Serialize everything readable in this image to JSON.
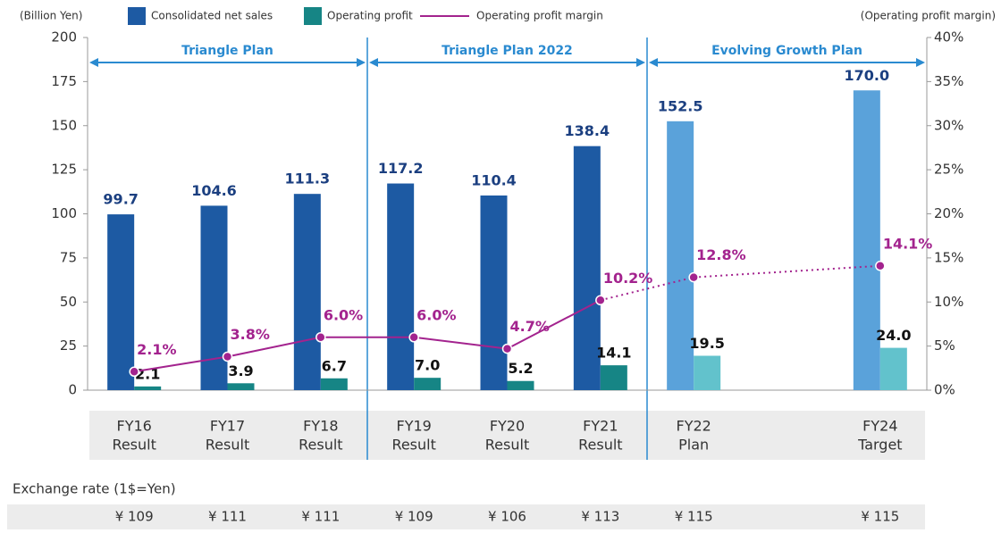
{
  "chart_data": {
    "type": "bar-line",
    "y_axis_label": "(Billion Yen)",
    "y2_axis_label": "(Operating profit margin)",
    "categories": [
      [
        "FY16",
        "Result"
      ],
      [
        "FY17",
        "Result"
      ],
      [
        "FY18",
        "Result"
      ],
      [
        "FY19",
        "Result"
      ],
      [
        "FY20",
        "Result"
      ],
      [
        "FY21",
        "Result"
      ],
      [
        "FY22",
        "Plan"
      ],
      null,
      [
        "FY24",
        "Target"
      ]
    ],
    "plan_labels": [
      "Triangle Plan",
      "Triangle Plan 2022",
      "Evolving Growth Plan"
    ],
    "series": [
      {
        "name": "Consolidated net sales",
        "type": "bar",
        "color": "#1d5aa3",
        "colors": [
          "#1d5aa3",
          "#1d5aa3",
          "#1d5aa3",
          "#1d5aa3",
          "#1d5aa3",
          "#1d5aa3",
          "#5aa2da",
          null,
          "#5aa2da"
        ],
        "values": [
          99.7,
          104.6,
          111.3,
          117.2,
          110.4,
          138.4,
          152.5,
          null,
          170.0
        ],
        "value_labels": [
          "99.7",
          "104.6",
          "111.3",
          "117.2",
          "110.4",
          "138.4",
          "152.5",
          null,
          "170.0"
        ]
      },
      {
        "name": "Operating profit",
        "type": "bar",
        "color": "#168585",
        "colors": [
          "#168585",
          "#168585",
          "#168585",
          "#168585",
          "#168585",
          "#168585",
          "#62c2cc",
          null,
          "#62c2cc"
        ],
        "values": [
          2.1,
          3.9,
          6.7,
          7.0,
          5.2,
          14.1,
          19.5,
          null,
          24.0
        ],
        "value_labels": [
          "2.1",
          "3.9",
          "6.7",
          "7.0",
          "5.2",
          "14.1",
          "19.5",
          null,
          "24.0"
        ]
      },
      {
        "name": "Operating profit margin",
        "type": "line",
        "axis": "y2",
        "color": "#a3238e",
        "values": [
          2.1,
          3.8,
          6.0,
          6.0,
          4.7,
          10.2,
          12.8,
          null,
          14.1
        ],
        "value_labels": [
          "2.1%",
          "3.8%",
          "6.0%",
          "6.0%",
          "4.7%",
          "10.2%",
          "12.8%",
          null,
          "14.1%"
        ]
      }
    ],
    "ylim": [
      0,
      200
    ],
    "yticks": [
      0,
      25,
      50,
      75,
      100,
      125,
      150,
      175,
      200
    ],
    "y2lim": [
      0,
      40
    ],
    "y2ticks": [
      {
        "value": 0,
        "label": "0%"
      },
      {
        "value": 5,
        "label": "5%"
      },
      {
        "value": 10,
        "label": "10%"
      },
      {
        "value": 15,
        "label": "15%"
      },
      {
        "value": 20,
        "label": "20%"
      },
      {
        "value": 25,
        "label": "25%"
      },
      {
        "value": 30,
        "label": "30%"
      },
      {
        "value": 35,
        "label": "35%"
      },
      {
        "value": 40,
        "label": "40%"
      }
    ],
    "exchange_rate_title": "Exchange rate (1$=Yen)",
    "exchange_rates": [
      "¥ 109",
      "¥ 111",
      "¥ 111",
      "¥ 109",
      "¥ 106",
      "¥ 113",
      "¥ 115",
      null,
      "¥ 115"
    ]
  }
}
